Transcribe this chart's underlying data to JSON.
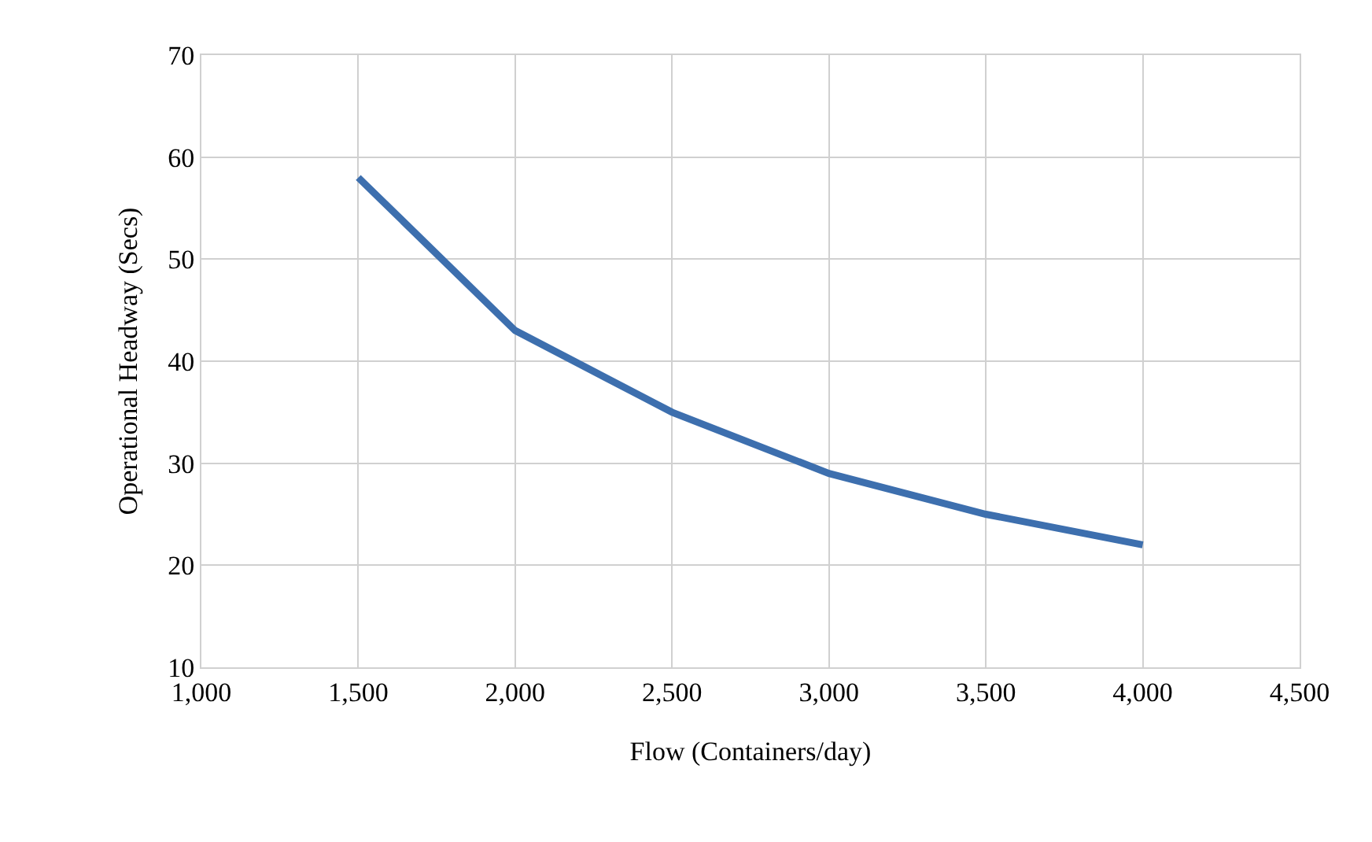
{
  "chart_data": {
    "type": "line",
    "xlabel": "Flow (Containers/day)",
    "ylabel": "Operational Headway (Secs)",
    "x": [
      1500,
      2000,
      2500,
      3000,
      3500,
      4000
    ],
    "series": [
      {
        "color": "#3d6fae",
        "values": [
          58,
          43,
          35,
          29,
          25,
          22
        ]
      }
    ],
    "xlim": [
      1000,
      4500
    ],
    "xticks": [
      {
        "value": 1000,
        "label": "1,000"
      },
      {
        "value": 1500,
        "label": "1,500"
      },
      {
        "value": 2000,
        "label": "2,000"
      },
      {
        "value": 2500,
        "label": "2,500"
      },
      {
        "value": 3000,
        "label": "3,000"
      },
      {
        "value": 3500,
        "label": "3,500"
      },
      {
        "value": 4000,
        "label": "4,000"
      },
      {
        "value": 4500,
        "label": "4,500"
      }
    ],
    "ylim": [
      10,
      70
    ],
    "yticks": [
      10,
      20,
      30,
      40,
      50,
      60,
      70
    ],
    "grid": true,
    "marker": "none",
    "line_style": "solid"
  }
}
